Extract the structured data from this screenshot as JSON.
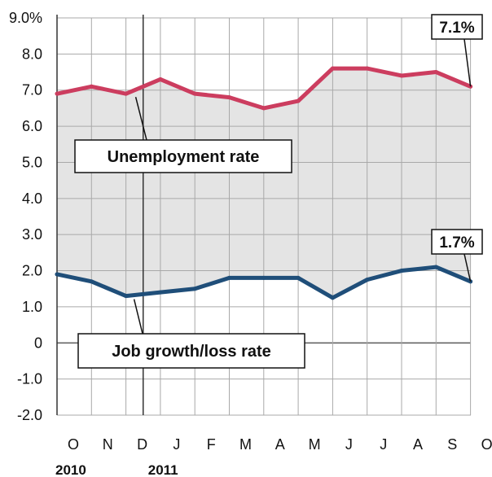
{
  "chart_data": {
    "type": "line",
    "x": [
      "O",
      "N",
      "D",
      "J",
      "F",
      "M",
      "A",
      "M",
      "J",
      "J",
      "A",
      "S",
      "O"
    ],
    "year_labels": [
      "2010",
      "2011"
    ],
    "ylim": [
      -2.0,
      9.0
    ],
    "y_ticks": [
      "9.0%",
      "8.0",
      "7.0",
      "6.0",
      "5.0",
      "4.0",
      "3.0",
      "2.0",
      "1.0",
      "0",
      "-1.0",
      "-2.0"
    ],
    "grid": true,
    "series": [
      {
        "name": "Unemployment rate",
        "color": "#cc3d5f",
        "values": [
          6.9,
          7.1,
          6.9,
          7.3,
          6.9,
          6.8,
          6.5,
          6.7,
          7.6,
          7.6,
          7.4,
          7.5,
          7.1
        ],
        "end_label": "7.1%"
      },
      {
        "name": "Job growth/loss rate",
        "color": "#1f4e79",
        "values": [
          1.9,
          1.7,
          1.3,
          1.4,
          1.5,
          1.8,
          1.8,
          1.8,
          1.25,
          1.75,
          2.0,
          2.1,
          1.7
        ],
        "end_label": "1.7%"
      }
    ]
  }
}
